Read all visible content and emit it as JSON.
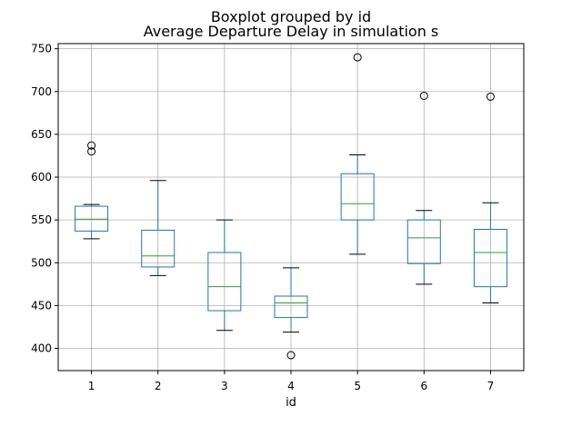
{
  "chart_data": {
    "type": "boxplot",
    "suptitle": "Boxplot grouped by id",
    "title": "Average Departure Delay in simulation s",
    "xlabel": "id",
    "ylabel": "",
    "categories": [
      "1",
      "2",
      "3",
      "4",
      "5",
      "6",
      "7"
    ],
    "ylim": [
      374,
      756
    ],
    "yticks": [
      400,
      450,
      500,
      550,
      600,
      650,
      700,
      750
    ],
    "grid": true,
    "boxes": [
      {
        "category": "1",
        "whisker_low": 528,
        "q1": 537,
        "median": 551,
        "q3": 566,
        "whisker_high": 568,
        "fliers": [
          630,
          637
        ]
      },
      {
        "category": "2",
        "whisker_low": 485,
        "q1": 495,
        "median": 508,
        "q3": 538,
        "whisker_high": 596,
        "fliers": []
      },
      {
        "category": "3",
        "whisker_low": 421,
        "q1": 444,
        "median": 472,
        "q3": 512,
        "whisker_high": 550,
        "fliers": []
      },
      {
        "category": "4",
        "whisker_low": 419,
        "q1": 436,
        "median": 453,
        "q3": 461,
        "whisker_high": 494,
        "fliers": [
          392
        ]
      },
      {
        "category": "5",
        "whisker_low": 510,
        "q1": 550,
        "median": 569,
        "q3": 604,
        "whisker_high": 626,
        "fliers": [
          740
        ]
      },
      {
        "category": "6",
        "whisker_low": 475,
        "q1": 499,
        "median": 529,
        "q3": 550,
        "whisker_high": 561,
        "fliers": [
          695
        ]
      },
      {
        "category": "7",
        "whisker_low": 453,
        "q1": 472,
        "median": 512,
        "q3": 539,
        "whisker_high": 570,
        "fliers": [
          694
        ]
      }
    ],
    "colors": {
      "box": "#1f77b4",
      "median": "#2ca02c",
      "grid": "#b0b0b0",
      "flier": "#000000"
    }
  }
}
